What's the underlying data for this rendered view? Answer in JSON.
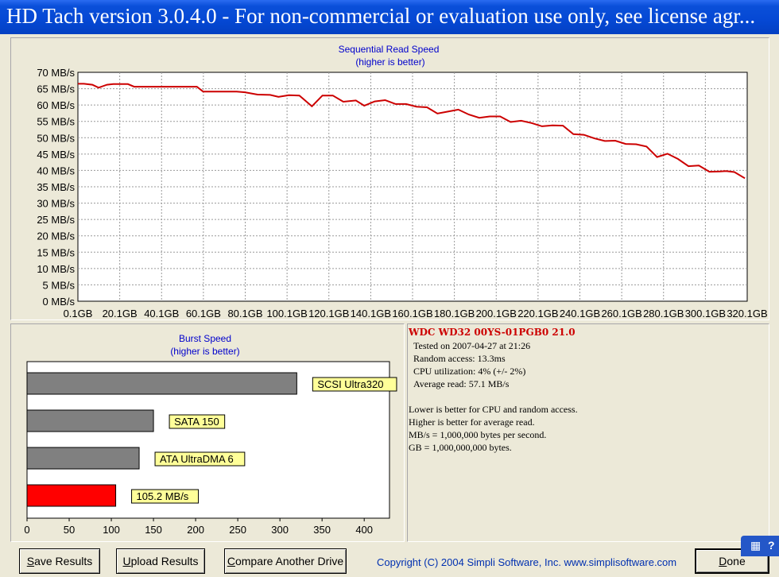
{
  "window": {
    "title": "HD Tach version 3.0.4.0  - For non-commercial or evaluation use only, see license agr..."
  },
  "colors": {
    "accent_line": "#cc0000",
    "bar_gray": "#808080",
    "bar_highlight": "#ff0000",
    "label_bg": "#ffff99",
    "title_blue": "#0000cc"
  },
  "chart_data": [
    {
      "type": "line",
      "title": "Sequential Read Speed",
      "subtitle": "(higher is better)",
      "xlabel": "",
      "ylabel": "",
      "ylim": [
        0,
        70
      ],
      "grid": true,
      "y_ticks": [
        "0 MB/s",
        "5 MB/s",
        "10 MB/s",
        "15 MB/s",
        "20 MB/s",
        "25 MB/s",
        "30 MB/s",
        "35 MB/s",
        "40 MB/s",
        "45 MB/s",
        "50 MB/s",
        "55 MB/s",
        "60 MB/s",
        "65 MB/s",
        "70 MB/s"
      ],
      "x_ticks": [
        "0.1GB",
        "20.1GB",
        "40.1GB",
        "60.1GB",
        "80.1GB",
        "100.1GB",
        "120.1GB",
        "140.1GB",
        "160.1GB",
        "180.1GB",
        "200.1GB",
        "220.1GB",
        "240.1GB",
        "260.1GB",
        "280.1GB",
        "300.1GB",
        "320.1GB"
      ],
      "x_range_gb": [
        0.1,
        320.1
      ],
      "series": [
        {
          "x": [
            0.1,
            3,
            7,
            10,
            14,
            17,
            24,
            27,
            35,
            47,
            57,
            60,
            66,
            76,
            80,
            86,
            92,
            96,
            101,
            106,
            112,
            117,
            122,
            127,
            133,
            137,
            142,
            147,
            152,
            157,
            162,
            167,
            172,
            177,
            182,
            187,
            192,
            197,
            202,
            207,
            212,
            217,
            222,
            227,
            232,
            237,
            242,
            247,
            252,
            257,
            262,
            267,
            272,
            277,
            282,
            287,
            292,
            297,
            302,
            307,
            310,
            314,
            319
          ],
          "values": [
            66.5,
            66.5,
            66.2,
            65.3,
            66.2,
            66.4,
            66.4,
            65.6,
            65.6,
            65.6,
            65.6,
            64.1,
            64.1,
            64.1,
            63.9,
            63.2,
            63.1,
            62.5,
            63.0,
            62.9,
            59.6,
            62.9,
            62.9,
            61.0,
            61.4,
            59.8,
            61.1,
            61.5,
            60.3,
            60.3,
            59.5,
            59.3,
            57.4,
            58.0,
            58.6,
            57.1,
            56.1,
            56.5,
            56.5,
            54.8,
            55.2,
            54.5,
            53.5,
            53.8,
            53.7,
            51.1,
            50.9,
            49.8,
            49.0,
            49.1,
            48.1,
            48.0,
            47.3,
            44.1,
            45.1,
            43.5,
            41.3,
            41.5,
            39.6,
            39.7,
            39.8,
            39.5,
            37.6
          ]
        }
      ]
    },
    {
      "type": "bar",
      "title": "Burst Speed",
      "subtitle": "(higher is better)",
      "orientation": "horizontal",
      "xlim": [
        0,
        430
      ],
      "x_ticks": [
        "0",
        "50",
        "100",
        "150",
        "200",
        "250",
        "300",
        "350",
        "400"
      ],
      "categories": [
        "SCSI Ultra320",
        "SATA 150",
        "ATA UltraDMA 6",
        "105.2 MB/s"
      ],
      "values": [
        320,
        150,
        133,
        105.2
      ]
    }
  ],
  "info": {
    "drive": "WDC  WD32 00YS-01PGB0 21.0",
    "lines": [
      "Tested on 2007-04-27 at 21:26",
      "Random access: 13.3ms",
      "CPU utilization: 4% (+/- 2%)",
      "Average read: 57.1 MB/s"
    ],
    "notes": [
      "Lower is better for CPU and random access.",
      "Higher is better for average read.",
      "MB/s = 1,000,000 bytes per second.",
      "GB = 1,000,000,000 bytes."
    ]
  },
  "buttons": {
    "save": {
      "u": "S",
      "rest": "ave Results"
    },
    "upload": {
      "u": "U",
      "rest": "pload Results"
    },
    "compare": {
      "u": "C",
      "rest": "ompare Another Drive"
    },
    "done": {
      "u": "D",
      "rest": "one"
    }
  },
  "copyright": "Copyright (C) 2004 Simpli Software, Inc. www.simplisoftware.com",
  "tray": {
    "icon1": "keyboard-icon",
    "icon2": "help-icon"
  }
}
